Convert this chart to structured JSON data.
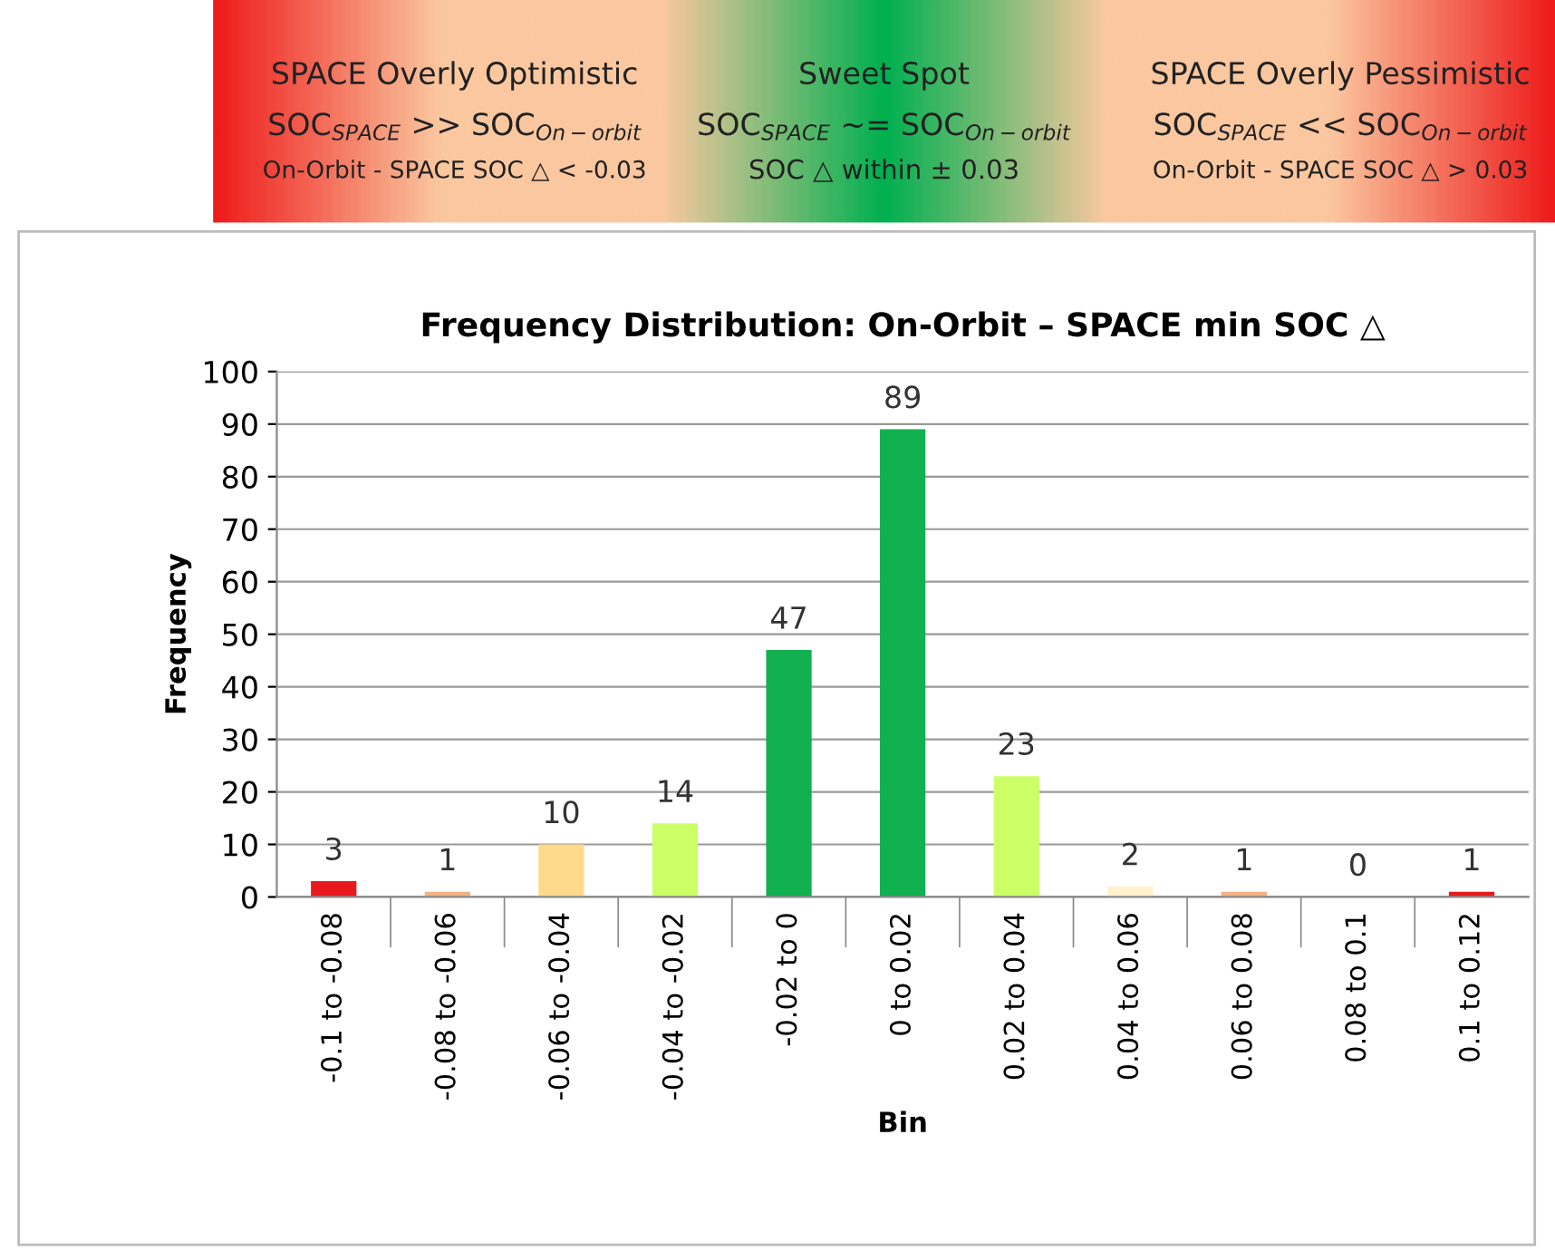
{
  "chart_data": {
    "type": "bar",
    "title": "Frequency Distribution: On-Orbit – SPACE min SOC △",
    "xlabel": "Bin",
    "ylabel": "Frequency",
    "categories": [
      "-0.1 to -0.08",
      "-0.08 to -0.06",
      "-0.06 to -0.04",
      "-0.04 to -0.02",
      "-0.02 to 0",
      "0 to 0.02",
      "0.02 to 0.04",
      "0.04 to 0.06",
      "0.06 to 0.08",
      "0.08 to 0.1",
      "0.1 to 0.12"
    ],
    "values": [
      3,
      1,
      10,
      14,
      47,
      89,
      23,
      2,
      1,
      0,
      1
    ],
    "colors": [
      "#e8191c",
      "#f4b183",
      "#ffd98a",
      "#ccff66",
      "#11b050",
      "#11b050",
      "#ccff66",
      "#fff2cc",
      "#f4b183",
      "#f4b183",
      "#e8191c"
    ],
    "ylim": [
      0,
      100
    ],
    "yticks": [
      0,
      10,
      20,
      30,
      40,
      50,
      60,
      70,
      80,
      90,
      100
    ],
    "grid": "y",
    "data_labels": true,
    "annotations": [
      "SPACE Overly Optimistic",
      "SOC$_{SPACE}$ >> SOC$_{On−orbit}$",
      "On-Orbit - SPACE SOC △ < -0.03",
      "Sweet Spot",
      "SOC$_{SPACE}$ ~= SOC$_{On−orbit}$",
      "SOC △ within ± 0.03",
      "SPACE Overly Pessimistic",
      "SOC$_{SPACE}$ << SOC$_{On−orbit}$",
      "On-Orbit - SPACE SOC △ > 0.03"
    ]
  }
}
